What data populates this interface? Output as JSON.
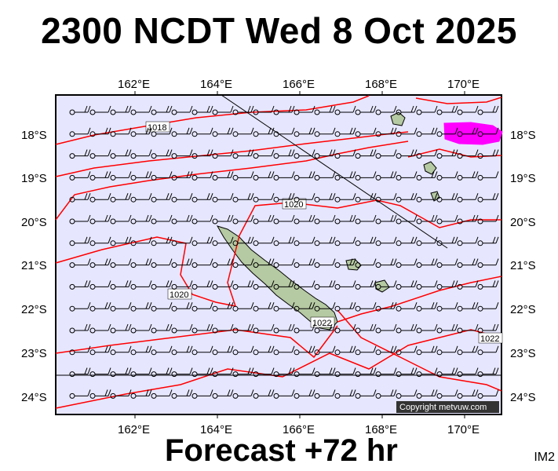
{
  "header": {
    "title": "2300 NCDT Wed 8 Oct 2025"
  },
  "footer": {
    "forecast": "Forecast +72 hr",
    "code": "IM2"
  },
  "map": {
    "lon_labels": [
      "162°E",
      "164°E",
      "166°E",
      "168°E",
      "170°E"
    ],
    "lat_labels": [
      "18°S",
      "19°S",
      "20°S",
      "21°S",
      "22°S",
      "23°S",
      "24°S"
    ],
    "isobar_labels": [
      "1018",
      "1020",
      "1020",
      "1022",
      "1022"
    ],
    "copyright": "Copyright metvuw.com",
    "colors": {
      "background": "#e6e6ff",
      "isobar": "#ff0000",
      "land": "#b5c9a2",
      "highlight": "#ff00ff",
      "barb": "#000000"
    },
    "icons": [
      "wind-barb-icon",
      "station-circle-icon"
    ]
  }
}
